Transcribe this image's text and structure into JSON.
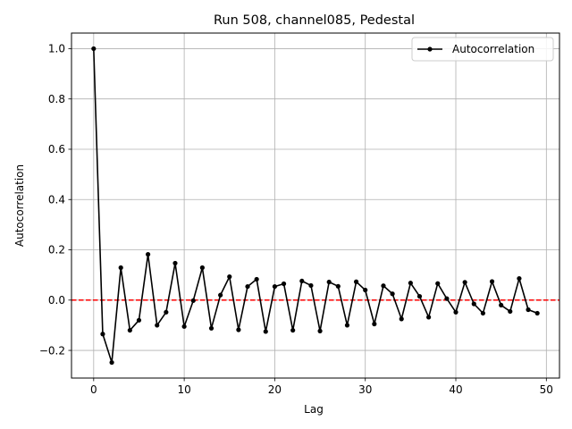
{
  "chart_data": {
    "type": "line",
    "title": "Run 508, channel085, Pedestal",
    "xlabel": "Lag",
    "ylabel": "Autocorrelation",
    "xlim": [
      -2.45,
      51.45
    ],
    "ylim": [
      -0.31,
      1.062
    ],
    "xticks": [
      0,
      10,
      20,
      30,
      40,
      50
    ],
    "yticks": [
      -0.2,
      0.0,
      0.2,
      0.4,
      0.6,
      0.8,
      1.0
    ],
    "xtick_labels": [
      "0",
      "10",
      "20",
      "30",
      "40",
      "50"
    ],
    "ytick_labels": [
      "−0.2",
      "0.0",
      "0.2",
      "0.4",
      "0.6",
      "0.8",
      "1.0"
    ],
    "grid": true,
    "legend_position": "top-right",
    "series": [
      {
        "name": "Autocorrelation",
        "color": "#000000",
        "marker": "circle",
        "x": [
          0,
          1,
          2,
          3,
          4,
          5,
          6,
          7,
          8,
          9,
          10,
          11,
          12,
          13,
          14,
          15,
          16,
          17,
          18,
          19,
          20,
          21,
          22,
          23,
          24,
          25,
          26,
          27,
          28,
          29,
          30,
          31,
          32,
          33,
          34,
          35,
          36,
          37,
          38,
          39,
          40,
          41,
          42,
          43,
          44,
          45,
          46,
          47,
          48,
          49
        ],
        "values": [
          1.0,
          -0.135,
          -0.248,
          0.129,
          -0.12,
          -0.08,
          0.182,
          -0.1,
          -0.048,
          0.147,
          -0.105,
          -0.002,
          0.129,
          -0.112,
          0.02,
          0.093,
          -0.118,
          0.054,
          0.083,
          -0.125,
          0.054,
          0.065,
          -0.12,
          0.076,
          0.058,
          -0.123,
          0.072,
          0.055,
          -0.1,
          0.073,
          0.04,
          -0.095,
          0.057,
          0.025,
          -0.075,
          0.068,
          0.015,
          -0.068,
          0.066,
          0.006,
          -0.048,
          0.071,
          -0.015,
          -0.052,
          0.074,
          -0.02,
          -0.045,
          0.086,
          -0.038,
          -0.052
        ]
      }
    ],
    "reference_line": {
      "y": 0.0,
      "color": "#ff0000",
      "style": "dashed"
    }
  }
}
